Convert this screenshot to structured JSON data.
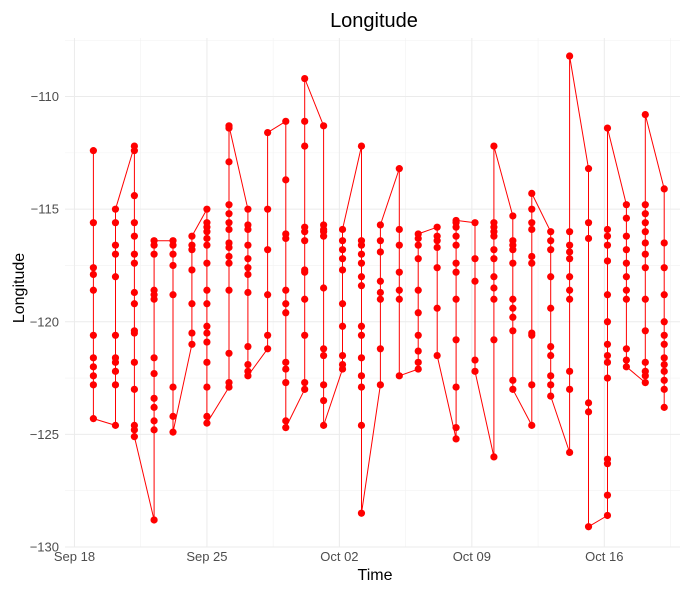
{
  "chart_data": {
    "type": "line",
    "title": "Longitude",
    "xlabel": "Time",
    "ylabel": "Longitude",
    "x_ticks": [
      {
        "date": "2017-09-18",
        "label": "Sep 18"
      },
      {
        "date": "2017-09-25",
        "label": "Sep 25"
      },
      {
        "date": "2017-10-02",
        "label": "Oct 02"
      },
      {
        "date": "2017-10-09",
        "label": "Oct 09"
      },
      {
        "date": "2017-10-16",
        "label": "Oct 16"
      }
    ],
    "y_ticks": [
      -110,
      -115,
      -120,
      -125,
      -130
    ],
    "xlim": [
      "2017-09-17T12:00",
      "2017-10-20T00:00"
    ],
    "ylim": [
      -130,
      -107.4
    ],
    "grid": true,
    "legend": "none",
    "colors": {
      "series": "#ff0000",
      "grid": "#ebebeb",
      "background": "#ffffff"
    },
    "series": [
      {
        "color": "#ff0000",
        "points": [
          {
            "t": "2017-09-19T00:00",
            "lons": [
              -124.3,
              -122.8,
              -122.4,
              -122.0,
              -121.6,
              -120.6,
              -118.6,
              -117.9,
              -117.6,
              -115.6,
              -112.4
            ]
          },
          {
            "t": "2017-09-20T04:00",
            "lons": [
              -124.6,
              -122.8,
              -122.2,
              -121.8,
              -121.6,
              -120.6,
              -118.0,
              -117.0,
              -116.6,
              -115.6,
              -115.0
            ]
          },
          {
            "t": "2017-09-21T04:00",
            "lons": [
              -125.1,
              -124.8,
              -124.6,
              -123.0,
              -121.8,
              -120.5,
              -120.4,
              -119.2,
              -118.7,
              -117.4,
              -117.0,
              -116.2,
              -115.6,
              -114.4,
              -112.4,
              -112.2
            ]
          },
          {
            "t": "2017-09-22T05:00",
            "lons": [
              -128.8,
              -124.8,
              -124.4,
              -123.8,
              -123.4,
              -122.3,
              -121.6,
              -119.0,
              -118.8,
              -118.6,
              -117.0,
              -116.6,
              -116.4
            ]
          },
          {
            "t": "2017-09-23T05:00",
            "lons": [
              -124.9,
              -124.2,
              -122.9,
              -118.8,
              -117.5,
              -117.0,
              -116.6,
              -116.4
            ]
          },
          {
            "t": "2017-09-24T05:00",
            "lons": [
              -121.0,
              -120.5,
              -119.2,
              -117.7,
              -116.8,
              -116.6,
              -116.2
            ]
          },
          {
            "t": "2017-09-25T00:00",
            "lons": [
              -124.5,
              -124.2,
              -122.9,
              -121.8,
              -120.9,
              -120.5,
              -120.2,
              -119.2,
              -118.6,
              -117.4,
              -116.6,
              -116.3,
              -116.0,
              -115.8,
              -115.6,
              -115.0
            ]
          },
          {
            "t": "2017-09-26T04:00",
            "lons": [
              -122.9,
              -122.7,
              -121.4,
              -118.6,
              -117.4,
              -117.1,
              -116.7,
              -116.5,
              -115.9,
              -115.6,
              -115.2,
              -114.8,
              -112.9,
              -111.4,
              -111.3
            ]
          },
          {
            "t": "2017-09-27T04:00",
            "lons": [
              -122.4,
              -122.2,
              -121.9,
              -121.1,
              -118.7,
              -117.9,
              -117.6,
              -117.2,
              -116.6,
              -115.9,
              -115.7,
              -115.0
            ]
          },
          {
            "t": "2017-09-28T05:00",
            "lons": [
              -121.2,
              -120.6,
              -118.8,
              -116.8,
              -115.0,
              -111.6
            ]
          },
          {
            "t": "2017-09-29T04:00",
            "lons": [
              -124.7,
              -124.4,
              -122.7,
              -122.1,
              -121.8,
              -119.6,
              -119.2,
              -118.6,
              -116.3,
              -116.1,
              -113.7,
              -111.1
            ]
          },
          {
            "t": "2017-09-30T04:00",
            "lons": [
              -123.0,
              -122.7,
              -120.6,
              -119.0,
              -117.8,
              -117.7,
              -116.4,
              -116.0,
              -115.8,
              -112.2,
              -111.1,
              -109.2
            ]
          },
          {
            "t": "2017-10-01T04:00",
            "lons": [
              -124.6,
              -123.5,
              -122.8,
              -121.5,
              -121.2,
              -118.5,
              -116.2,
              -116.0,
              -115.9,
              -115.7,
              -111.3
            ]
          },
          {
            "t": "2017-10-02T04:00",
            "lons": [
              -122.1,
              -121.9,
              -121.5,
              -120.2,
              -119.2,
              -117.7,
              -117.2,
              -116.8,
              -116.4,
              -115.9
            ]
          },
          {
            "t": "2017-10-03T04:00",
            "lons": [
              -128.5,
              -124.6,
              -122.9,
              -122.4,
              -121.6,
              -120.6,
              -120.2,
              -118.4,
              -118.0,
              -117.4,
              -117.0,
              -116.6,
              -116.4,
              -112.2
            ]
          },
          {
            "t": "2017-10-04T04:00",
            "lons": [
              -122.8,
              -121.2,
              -119.0,
              -118.7,
              -118.2,
              -116.9,
              -116.4,
              -115.7
            ]
          },
          {
            "t": "2017-10-05T04:00",
            "lons": [
              -122.4,
              -119.0,
              -118.6,
              -117.8,
              -116.6,
              -115.9,
              -113.2
            ]
          },
          {
            "t": "2017-10-06T04:00",
            "lons": [
              -122.1,
              -121.8,
              -121.3,
              -120.6,
              -119.6,
              -118.6,
              -117.2,
              -116.6,
              -116.3,
              -116.1
            ]
          },
          {
            "t": "2017-10-07T04:00",
            "lons": [
              -121.5,
              -119.4,
              -117.6,
              -116.7,
              -116.4,
              -116.2,
              -115.8
            ]
          },
          {
            "t": "2017-10-08T04:00",
            "lons": [
              -125.2,
              -124.7,
              -122.9,
              -120.8,
              -119.0,
              -117.8,
              -117.4,
              -116.6,
              -116.2,
              -115.8,
              -115.6,
              -115.5
            ]
          },
          {
            "t": "2017-10-09T04:00",
            "lons": [
              -122.2,
              -121.7,
              -118.2,
              -117.2,
              -115.6
            ]
          },
          {
            "t": "2017-10-10T04:00",
            "lons": [
              -126.0,
              -120.8,
              -119.0,
              -118.5,
              -118.0,
              -117.2,
              -116.8,
              -116.2,
              -116.0,
              -115.8,
              -115.6,
              -112.2
            ]
          },
          {
            "t": "2017-10-11T04:00",
            "lons": [
              -123.0,
              -122.6,
              -120.4,
              -119.8,
              -119.4,
              -119.0,
              -117.4,
              -116.8,
              -116.6,
              -116.4,
              -115.3
            ]
          },
          {
            "t": "2017-10-12T04:00",
            "lons": [
              -124.6,
              -122.8,
              -120.6,
              -120.5,
              -117.4,
              -117.1,
              -115.9,
              -115.6,
              -115.0,
              -114.3
            ]
          },
          {
            "t": "2017-10-13T04:00",
            "lons": [
              -123.3,
              -122.8,
              -122.4,
              -121.5,
              -121.1,
              -119.4,
              -118.0,
              -116.8,
              -116.4,
              -116.0
            ]
          },
          {
            "t": "2017-10-14T04:00",
            "lons": [
              -125.8,
              -123.0,
              -122.2,
              -119.0,
              -118.6,
              -118.0,
              -117.2,
              -116.9,
              -116.6,
              -116.0,
              -108.2
            ]
          },
          {
            "t": "2017-10-15T04:00",
            "lons": [
              -129.1,
              -124.0,
              -123.6,
              -116.3,
              -115.6,
              -113.2
            ]
          },
          {
            "t": "2017-10-16T04:00",
            "lons": [
              -128.6,
              -127.7,
              -126.3,
              -126.1,
              -122.5,
              -121.8,
              -121.5,
              -121.0,
              -120.0,
              -118.8,
              -117.3,
              -116.6,
              -116.2,
              -115.9,
              -111.4
            ]
          },
          {
            "t": "2017-10-17T04:00",
            "lons": [
              -122.0,
              -121.7,
              -121.2,
              -119.0,
              -118.6,
              -118.0,
              -117.4,
              -116.8,
              -116.2,
              -115.4,
              -114.8
            ]
          },
          {
            "t": "2017-10-18T04:00",
            "lons": [
              -122.7,
              -122.4,
              -122.2,
              -121.8,
              -120.4,
              -119.0,
              -117.6,
              -117.0,
              -116.5,
              -116.0,
              -115.6,
              -115.2,
              -114.8,
              -110.8
            ]
          },
          {
            "t": "2017-10-19T04:00",
            "lons": [
              -123.8,
              -123.0,
              -122.6,
              -122.2,
              -121.9,
              -121.6,
              -121.0,
              -120.6,
              -120.0,
              -118.8,
              -117.6,
              -116.5,
              -114.1
            ]
          }
        ]
      }
    ]
  }
}
